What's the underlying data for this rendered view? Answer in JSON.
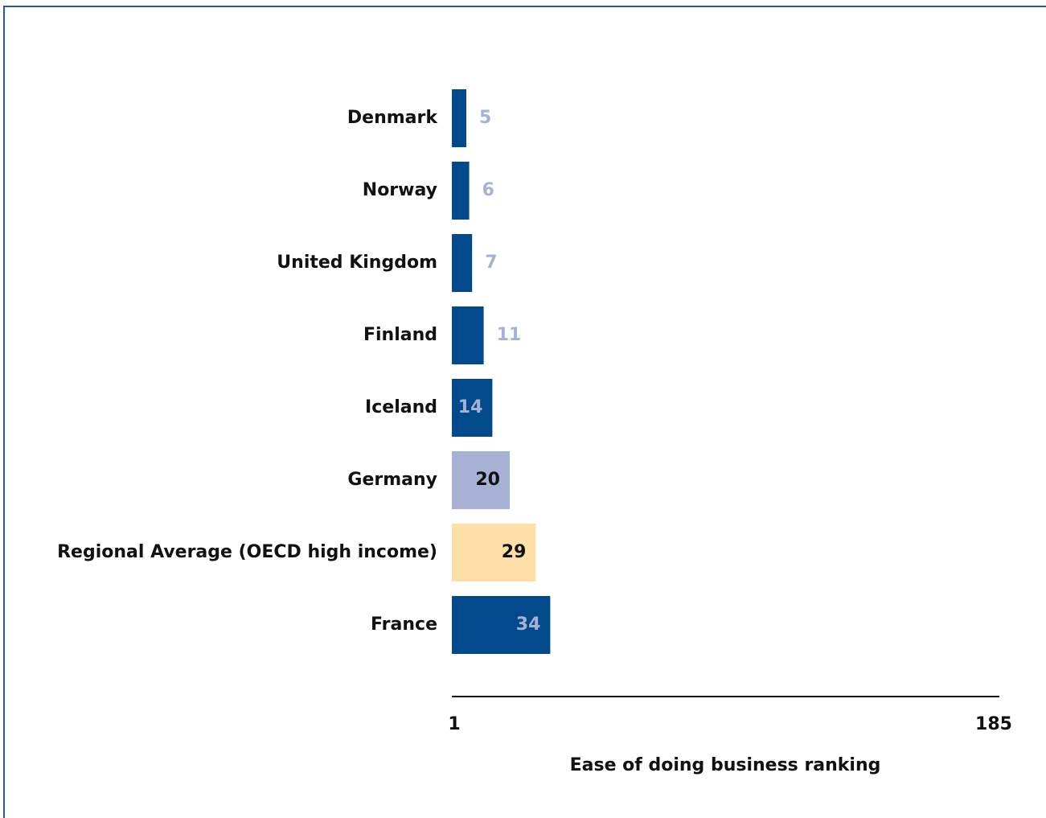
{
  "chart_data": {
    "type": "bar",
    "orientation": "horizontal",
    "categories": [
      "Denmark",
      "Norway",
      "United Kingdom",
      "Finland",
      "Iceland",
      "Germany",
      "Regional Average (OECD high income)",
      "France"
    ],
    "values": [
      5,
      6,
      7,
      11,
      14,
      20,
      29,
      34
    ],
    "bar_colors": [
      "#034a8c",
      "#034a8c",
      "#034a8c",
      "#034a8c",
      "#034a8c",
      "#a6b1d4",
      "#fde0a8",
      "#034a8c"
    ],
    "value_label_colors": [
      "#a6b1d4",
      "#a6b1d4",
      "#a6b1d4",
      "#a6b1d4",
      "#a6b1d4",
      "#111111",
      "#111111",
      "#a6b1d4"
    ],
    "xlim": [
      1,
      185
    ],
    "x_ticks": [
      "1",
      "185"
    ],
    "xlabel": "Ease of doing business ranking",
    "ylabel": "",
    "title": "",
    "grid": false
  }
}
